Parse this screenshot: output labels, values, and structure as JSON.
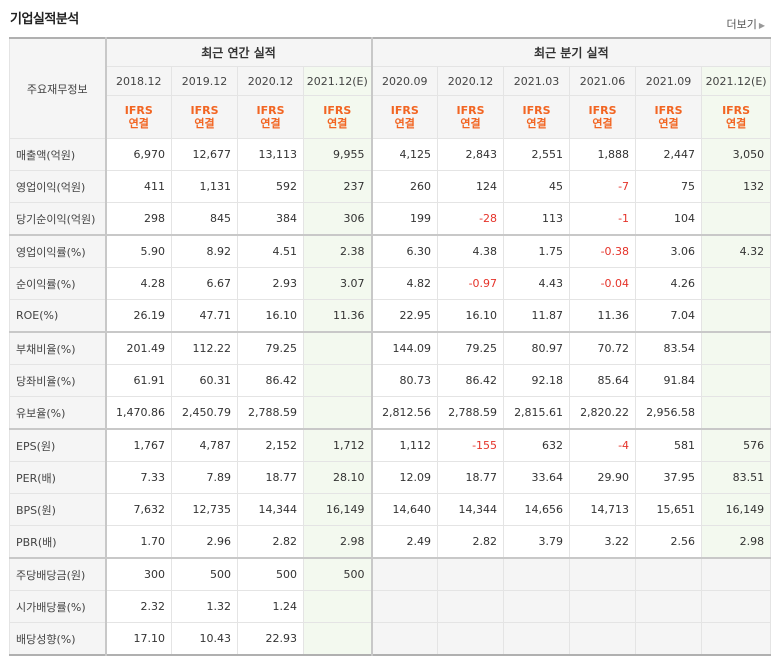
{
  "title": "기업실적분석",
  "more_label": "더보기",
  "header": {
    "row_label": "주요재무정보",
    "annual_group": "최근 연간 실적",
    "quarter_group": "최근 분기 실적",
    "periods": [
      "2018.12",
      "2019.12",
      "2020.12",
      "2021.12(E)",
      "2020.09",
      "2020.12",
      "2021.03",
      "2021.06",
      "2021.09",
      "2021.12(E)"
    ],
    "ifrs_top": "IFRS",
    "ifrs_bottom": "연결"
  },
  "rows": [
    {
      "label": "매출액(억원)",
      "values": [
        "6,970",
        "12,677",
        "13,113",
        "9,955",
        "4,125",
        "2,843",
        "2,551",
        "1,888",
        "2,447",
        "3,050"
      ]
    },
    {
      "label": "영업이익(억원)",
      "values": [
        "411",
        "1,131",
        "592",
        "237",
        "260",
        "124",
        "45",
        "-7",
        "75",
        "132"
      ]
    },
    {
      "label": "당기순이익(억원)",
      "values": [
        "298",
        "845",
        "384",
        "306",
        "199",
        "-28",
        "113",
        "-1",
        "104",
        ""
      ]
    },
    {
      "label": "영업이익률(%)",
      "values": [
        "5.90",
        "8.92",
        "4.51",
        "2.38",
        "6.30",
        "4.38",
        "1.75",
        "-0.38",
        "3.06",
        "4.32"
      ]
    },
    {
      "label": "순이익률(%)",
      "values": [
        "4.28",
        "6.67",
        "2.93",
        "3.07",
        "4.82",
        "-0.97",
        "4.43",
        "-0.04",
        "4.26",
        ""
      ]
    },
    {
      "label": "ROE(%)",
      "values": [
        "26.19",
        "47.71",
        "16.10",
        "11.36",
        "22.95",
        "16.10",
        "11.87",
        "11.36",
        "7.04",
        ""
      ]
    },
    {
      "label": "부채비율(%)",
      "values": [
        "201.49",
        "112.22",
        "79.25",
        "",
        "144.09",
        "79.25",
        "80.97",
        "70.72",
        "83.54",
        ""
      ]
    },
    {
      "label": "당좌비율(%)",
      "values": [
        "61.91",
        "60.31",
        "86.42",
        "",
        "80.73",
        "86.42",
        "92.18",
        "85.64",
        "91.84",
        ""
      ]
    },
    {
      "label": "유보율(%)",
      "values": [
        "1,470.86",
        "2,450.79",
        "2,788.59",
        "",
        "2,812.56",
        "2,788.59",
        "2,815.61",
        "2,820.22",
        "2,956.58",
        ""
      ]
    },
    {
      "label": "EPS(원)",
      "values": [
        "1,767",
        "4,787",
        "2,152",
        "1,712",
        "1,112",
        "-155",
        "632",
        "-4",
        "581",
        "576"
      ]
    },
    {
      "label": "PER(배)",
      "values": [
        "7.33",
        "7.89",
        "18.77",
        "28.10",
        "12.09",
        "18.77",
        "33.64",
        "29.90",
        "37.95",
        "83.51"
      ]
    },
    {
      "label": "BPS(원)",
      "values": [
        "7,632",
        "12,735",
        "14,344",
        "16,149",
        "14,640",
        "14,344",
        "14,656",
        "14,713",
        "15,651",
        "16,149"
      ]
    },
    {
      "label": "PBR(배)",
      "values": [
        "1.70",
        "2.96",
        "2.82",
        "2.98",
        "2.49",
        "2.82",
        "3.79",
        "3.22",
        "2.56",
        "2.98"
      ]
    },
    {
      "label": "주당배당금(원)",
      "values": [
        "300",
        "500",
        "500",
        "500",
        "",
        "",
        "",
        "",
        "",
        ""
      ]
    },
    {
      "label": "시가배당률(%)",
      "values": [
        "2.32",
        "1.32",
        "1.24",
        "",
        "",
        "",
        "",
        "",
        "",
        ""
      ]
    },
    {
      "label": "배당성향(%)",
      "values": [
        "17.10",
        "10.43",
        "22.93",
        "",
        "",
        "",
        "",
        "",
        "",
        ""
      ]
    }
  ],
  "colors": {
    "ifrs": "#f26522",
    "negative": "#e5332a",
    "estimate_bg": "#f3f9ef",
    "header_bg": "#f5f5f5"
  }
}
